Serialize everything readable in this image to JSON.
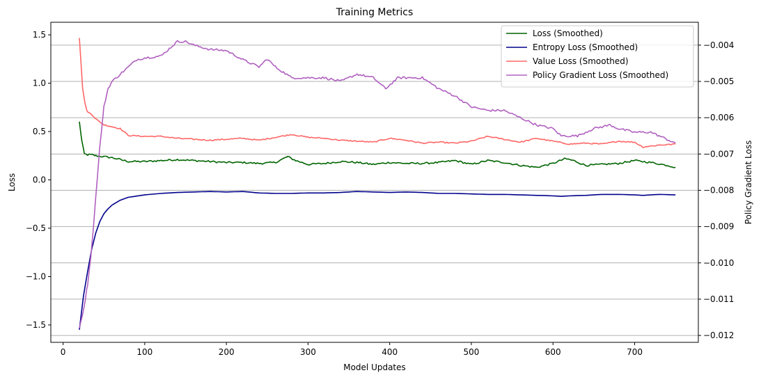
{
  "chart_data": {
    "type": "line",
    "title": "Training Metrics",
    "xlabel": "Model Updates",
    "ylabel": "Loss",
    "ylabel_right": "Policy Gradient Loss",
    "xlim": [
      -15,
      778
    ],
    "ylim": [
      -1.68,
      1.63
    ],
    "ylim_right": [
      -0.01219,
      -0.00337
    ],
    "x_ticks": [
      0,
      100,
      200,
      300,
      400,
      500,
      600,
      700
    ],
    "y_ticks": [
      -1.5,
      -1.0,
      -0.5,
      0.0,
      0.5,
      1.0,
      1.5
    ],
    "y_tick_labels": [
      "−1.5",
      "−1.0",
      "−0.5",
      "0.0",
      "0.5",
      "1.0",
      "1.5"
    ],
    "y_right_ticks": [
      -0.012,
      -0.011,
      -0.01,
      -0.009,
      -0.008,
      -0.007,
      -0.006,
      -0.005,
      -0.004
    ],
    "y_right_tick_labels": [
      "−0.012",
      "−0.011",
      "−0.010",
      "−0.009",
      "−0.008",
      "−0.007",
      "−0.006",
      "−0.005",
      "−0.004"
    ],
    "grid": "horizontal lines at right-axis ticks",
    "legend_position": "top-right",
    "series": [
      {
        "name": "Loss (Smoothed)",
        "axis": "left",
        "color": "#006400",
        "points": [
          [
            20,
            0.6
          ],
          [
            23,
            0.4
          ],
          [
            26,
            0.27
          ],
          [
            30,
            0.26
          ],
          [
            35,
            0.26
          ],
          [
            40,
            0.25
          ],
          [
            50,
            0.24
          ],
          [
            60,
            0.23
          ],
          [
            70,
            0.21
          ],
          [
            80,
            0.19
          ],
          [
            100,
            0.19
          ],
          [
            120,
            0.2
          ],
          [
            140,
            0.21
          ],
          [
            160,
            0.2
          ],
          [
            180,
            0.19
          ],
          [
            200,
            0.18
          ],
          [
            220,
            0.18
          ],
          [
            240,
            0.17
          ],
          [
            260,
            0.18
          ],
          [
            275,
            0.24
          ],
          [
            285,
            0.2
          ],
          [
            300,
            0.16
          ],
          [
            320,
            0.17
          ],
          [
            340,
            0.19
          ],
          [
            360,
            0.18
          ],
          [
            380,
            0.16
          ],
          [
            400,
            0.18
          ],
          [
            420,
            0.17
          ],
          [
            440,
            0.17
          ],
          [
            460,
            0.18
          ],
          [
            480,
            0.2
          ],
          [
            500,
            0.16
          ],
          [
            520,
            0.2
          ],
          [
            540,
            0.18
          ],
          [
            560,
            0.15
          ],
          [
            580,
            0.13
          ],
          [
            600,
            0.17
          ],
          [
            615,
            0.22
          ],
          [
            625,
            0.2
          ],
          [
            640,
            0.15
          ],
          [
            660,
            0.16
          ],
          [
            680,
            0.17
          ],
          [
            700,
            0.2
          ],
          [
            720,
            0.18
          ],
          [
            740,
            0.15
          ],
          [
            750,
            0.13
          ]
        ]
      },
      {
        "name": "Entropy Loss (Smoothed)",
        "axis": "left",
        "color": "#00008b",
        "points": [
          [
            20,
            -1.55
          ],
          [
            25,
            -1.2
          ],
          [
            30,
            -0.95
          ],
          [
            35,
            -0.72
          ],
          [
            40,
            -0.55
          ],
          [
            45,
            -0.43
          ],
          [
            50,
            -0.35
          ],
          [
            55,
            -0.3
          ],
          [
            60,
            -0.26
          ],
          [
            70,
            -0.21
          ],
          [
            80,
            -0.18
          ],
          [
            100,
            -0.155
          ],
          [
            120,
            -0.14
          ],
          [
            140,
            -0.13
          ],
          [
            160,
            -0.125
          ],
          [
            180,
            -0.12
          ],
          [
            200,
            -0.125
          ],
          [
            220,
            -0.12
          ],
          [
            240,
            -0.135
          ],
          [
            260,
            -0.14
          ],
          [
            280,
            -0.14
          ],
          [
            300,
            -0.135
          ],
          [
            320,
            -0.135
          ],
          [
            340,
            -0.13
          ],
          [
            360,
            -0.12
          ],
          [
            380,
            -0.125
          ],
          [
            400,
            -0.13
          ],
          [
            420,
            -0.125
          ],
          [
            440,
            -0.13
          ],
          [
            460,
            -0.14
          ],
          [
            480,
            -0.14
          ],
          [
            500,
            -0.145
          ],
          [
            520,
            -0.15
          ],
          [
            540,
            -0.15
          ],
          [
            560,
            -0.155
          ],
          [
            580,
            -0.16
          ],
          [
            600,
            -0.165
          ],
          [
            610,
            -0.17
          ],
          [
            620,
            -0.165
          ],
          [
            640,
            -0.16
          ],
          [
            660,
            -0.15
          ],
          [
            680,
            -0.15
          ],
          [
            700,
            -0.155
          ],
          [
            710,
            -0.16
          ],
          [
            730,
            -0.15
          ],
          [
            750,
            -0.155
          ]
        ]
      },
      {
        "name": "Value Loss (Smoothed)",
        "axis": "left",
        "color": "#ff6666",
        "points": [
          [
            20,
            1.47
          ],
          [
            22,
            1.2
          ],
          [
            24,
            0.95
          ],
          [
            27,
            0.78
          ],
          [
            30,
            0.7
          ],
          [
            35,
            0.68
          ],
          [
            40,
            0.63
          ],
          [
            50,
            0.57
          ],
          [
            60,
            0.55
          ],
          [
            70,
            0.53
          ],
          [
            80,
            0.46
          ],
          [
            100,
            0.45
          ],
          [
            120,
            0.45
          ],
          [
            140,
            0.43
          ],
          [
            160,
            0.42
          ],
          [
            180,
            0.41
          ],
          [
            200,
            0.42
          ],
          [
            220,
            0.43
          ],
          [
            240,
            0.41
          ],
          [
            260,
            0.44
          ],
          [
            280,
            0.47
          ],
          [
            300,
            0.44
          ],
          [
            320,
            0.43
          ],
          [
            340,
            0.41
          ],
          [
            360,
            0.4
          ],
          [
            380,
            0.39
          ],
          [
            400,
            0.43
          ],
          [
            420,
            0.41
          ],
          [
            440,
            0.38
          ],
          [
            460,
            0.39
          ],
          [
            480,
            0.38
          ],
          [
            500,
            0.4
          ],
          [
            520,
            0.45
          ],
          [
            540,
            0.42
          ],
          [
            560,
            0.39
          ],
          [
            580,
            0.43
          ],
          [
            600,
            0.4
          ],
          [
            620,
            0.37
          ],
          [
            640,
            0.38
          ],
          [
            660,
            0.37
          ],
          [
            680,
            0.4
          ],
          [
            700,
            0.39
          ],
          [
            710,
            0.34
          ],
          [
            730,
            0.36
          ],
          [
            750,
            0.37
          ]
        ]
      },
      {
        "name": "Policy Gradient Loss (Smoothed)",
        "axis": "right",
        "color": "#b060c0",
        "points": [
          [
            20,
            -0.0118
          ],
          [
            25,
            -0.0113
          ],
          [
            30,
            -0.0106
          ],
          [
            35,
            -0.0096
          ],
          [
            40,
            -0.0082
          ],
          [
            45,
            -0.0068
          ],
          [
            50,
            -0.0057
          ],
          [
            55,
            -0.0052
          ],
          [
            60,
            -0.005
          ],
          [
            70,
            -0.0048
          ],
          [
            80,
            -0.0046
          ],
          [
            90,
            -0.0044
          ],
          [
            100,
            -0.00435
          ],
          [
            120,
            -0.0043
          ],
          [
            140,
            -0.0039
          ],
          [
            150,
            -0.0039
          ],
          [
            160,
            -0.004
          ],
          [
            180,
            -0.00412
          ],
          [
            200,
            -0.00415
          ],
          [
            220,
            -0.0044
          ],
          [
            240,
            -0.0046
          ],
          [
            250,
            -0.00438
          ],
          [
            260,
            -0.0046
          ],
          [
            280,
            -0.0049
          ],
          [
            300,
            -0.0049
          ],
          [
            320,
            -0.0049
          ],
          [
            340,
            -0.005
          ],
          [
            360,
            -0.0048
          ],
          [
            380,
            -0.0049
          ],
          [
            395,
            -0.0052
          ],
          [
            410,
            -0.0049
          ],
          [
            430,
            -0.0049
          ],
          [
            440,
            -0.0049
          ],
          [
            460,
            -0.0052
          ],
          [
            480,
            -0.0054
          ],
          [
            500,
            -0.0057
          ],
          [
            520,
            -0.0058
          ],
          [
            540,
            -0.0058
          ],
          [
            560,
            -0.006
          ],
          [
            580,
            -0.0062
          ],
          [
            600,
            -0.0063
          ],
          [
            610,
            -0.0065
          ],
          [
            630,
            -0.0065
          ],
          [
            650,
            -0.0063
          ],
          [
            670,
            -0.0062
          ],
          [
            680,
            -0.0063
          ],
          [
            700,
            -0.0064
          ],
          [
            720,
            -0.0064
          ],
          [
            740,
            -0.0066
          ],
          [
            750,
            -0.0067
          ]
        ]
      }
    ]
  }
}
